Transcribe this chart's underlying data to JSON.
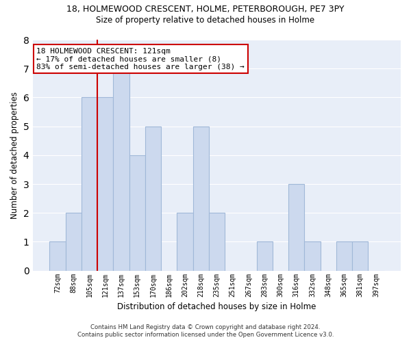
{
  "title1": "18, HOLMEWOOD CRESCENT, HOLME, PETERBOROUGH, PE7 3PY",
  "title2": "Size of property relative to detached houses in Holme",
  "xlabel": "Distribution of detached houses by size in Holme",
  "ylabel": "Number of detached properties",
  "categories": [
    "72sqm",
    "88sqm",
    "105sqm",
    "121sqm",
    "137sqm",
    "153sqm",
    "170sqm",
    "186sqm",
    "202sqm",
    "218sqm",
    "235sqm",
    "251sqm",
    "267sqm",
    "283sqm",
    "300sqm",
    "316sqm",
    "332sqm",
    "348sqm",
    "365sqm",
    "381sqm",
    "397sqm"
  ],
  "values": [
    1,
    2,
    6,
    6,
    7,
    4,
    5,
    0,
    2,
    5,
    2,
    0,
    0,
    1,
    0,
    3,
    1,
    0,
    1,
    1,
    0
  ],
  "bar_color": "#ccd9ee",
  "bar_edge_color": "#a0b8d8",
  "highlight_index": 3,
  "vline_color": "#cc0000",
  "ylim": [
    0,
    8
  ],
  "yticks": [
    0,
    1,
    2,
    3,
    4,
    5,
    6,
    7,
    8
  ],
  "annotation_box_text": "18 HOLMEWOOD CRESCENT: 121sqm\n← 17% of detached houses are smaller (8)\n83% of semi-detached houses are larger (38) →",
  "footer1": "Contains HM Land Registry data © Crown copyright and database right 2024.",
  "footer2": "Contains public sector information licensed under the Open Government Licence v3.0.",
  "bg_color": "#ffffff",
  "plot_bg_color": "#e8eef8",
  "grid_color": "#ffffff"
}
